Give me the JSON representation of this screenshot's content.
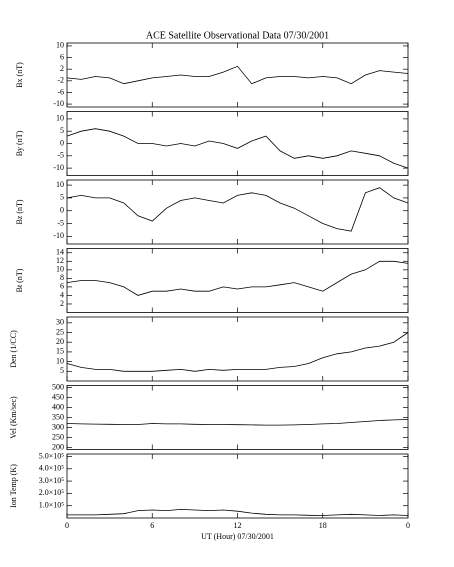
{
  "chart_data": [
    {
      "type": "line",
      "title": "ACE Satellite Observational Data   07/30/2001",
      "ylabel": "Bx (nT)",
      "x": [
        0,
        1,
        2,
        3,
        4,
        5,
        6,
        7,
        8,
        9,
        10,
        11,
        12,
        13,
        14,
        15,
        16,
        17,
        18,
        19,
        20,
        21,
        22,
        23,
        24
      ],
      "values": [
        -1,
        -1.5,
        -0.5,
        -1,
        -3,
        -2,
        -1,
        -0.5,
        0,
        -0.5,
        -0.5,
        1,
        3,
        -3,
        -1,
        -0.5,
        -0.5,
        -1,
        -0.5,
        -1,
        -3,
        0,
        1.5,
        1,
        0.5
      ],
      "color": "#000000",
      "xlim": [
        0,
        24
      ],
      "xticks": [
        0,
        6,
        12,
        18,
        {
          "value": 24,
          "label": "0"
        }
      ],
      "ylim": [
        -11,
        11
      ],
      "yticks": [
        -10,
        -6,
        -2,
        2,
        6,
        10
      ]
    },
    {
      "type": "line",
      "ylabel": "By (nT)",
      "x": [
        0,
        1,
        2,
        3,
        4,
        5,
        6,
        7,
        8,
        9,
        10,
        11,
        12,
        13,
        14,
        15,
        16,
        17,
        18,
        19,
        20,
        21,
        22,
        23,
        24
      ],
      "values": [
        3,
        5,
        6,
        5,
        3,
        0,
        0,
        -1,
        0,
        -1,
        1,
        0,
        -2,
        1,
        3,
        -3,
        -6,
        -5,
        -6,
        -5,
        -3,
        -4,
        -5,
        -8,
        -10
      ],
      "color": "#000000",
      "xlim": [
        0,
        24
      ],
      "xticks": [
        0,
        6,
        12,
        18,
        {
          "value": 24,
          "label": "0"
        }
      ],
      "ylim": [
        -13,
        13
      ],
      "yticks": [
        -10,
        -5,
        0,
        5,
        10
      ]
    },
    {
      "type": "line",
      "ylabel": "Bz (nT)",
      "x": [
        0,
        1,
        2,
        3,
        4,
        5,
        6,
        7,
        8,
        9,
        10,
        11,
        12,
        13,
        14,
        15,
        16,
        17,
        18,
        19,
        20,
        21,
        22,
        23,
        24
      ],
      "values": [
        5,
        6,
        5,
        5,
        3,
        -2,
        -4,
        1,
        4,
        5,
        4,
        3,
        6,
        7,
        6,
        3,
        1,
        -2,
        -5,
        -7,
        -8,
        7,
        9,
        5,
        3
      ],
      "color": "#000000",
      "xlim": [
        0,
        24
      ],
      "xticks": [
        0,
        6,
        12,
        18,
        {
          "value": 24,
          "label": "0"
        }
      ],
      "ylim": [
        -13,
        12
      ],
      "yticks": [
        -10,
        -5,
        0,
        5,
        10
      ]
    },
    {
      "type": "line",
      "ylabel": "Bt (nT)",
      "x": [
        0,
        1,
        2,
        3,
        4,
        5,
        6,
        7,
        8,
        9,
        10,
        11,
        12,
        13,
        14,
        15,
        16,
        17,
        18,
        19,
        20,
        21,
        22,
        23,
        24
      ],
      "values": [
        7,
        7.5,
        7.5,
        7,
        6,
        4,
        5,
        5,
        5.5,
        5,
        5,
        6,
        5.5,
        6,
        6,
        6.5,
        7,
        6,
        5,
        7,
        9,
        10,
        12,
        12,
        11.5
      ],
      "color": "#000000",
      "xlim": [
        0,
        24
      ],
      "xticks": [
        0,
        6,
        12,
        18,
        {
          "value": 24,
          "label": "0"
        }
      ],
      "ylim": [
        0,
        15
      ],
      "yticks": [
        2,
        4,
        6,
        8,
        10,
        12,
        14
      ]
    },
    {
      "type": "line",
      "ylabel": "Den (1/CC)",
      "x": [
        0,
        1,
        2,
        3,
        4,
        5,
        6,
        7,
        8,
        9,
        10,
        11,
        12,
        13,
        14,
        15,
        16,
        17,
        18,
        19,
        20,
        21,
        22,
        23,
        24
      ],
      "values": [
        9,
        7,
        6,
        6,
        5,
        5,
        5,
        5.5,
        6,
        5,
        6,
        5.5,
        6,
        6,
        6,
        7,
        7.5,
        9,
        12,
        14,
        15,
        17,
        18,
        20,
        25
      ],
      "color": "#000000",
      "xlim": [
        0,
        24
      ],
      "xticks": [
        0,
        6,
        12,
        18,
        {
          "value": 24,
          "label": "0"
        }
      ],
      "ylim": [
        0,
        33
      ],
      "yticks": [
        5,
        10,
        15,
        20,
        25,
        30
      ]
    },
    {
      "type": "line",
      "ylabel": "Vel (Km/sec)",
      "x": [
        0,
        1,
        2,
        3,
        4,
        5,
        6,
        7,
        8,
        9,
        10,
        11,
        12,
        13,
        14,
        15,
        16,
        17,
        18,
        19,
        20,
        21,
        22,
        23,
        24
      ],
      "values": [
        320,
        318,
        317,
        316,
        315,
        315,
        320,
        318,
        318,
        316,
        315,
        315,
        314,
        313,
        312,
        312,
        313,
        315,
        318,
        320,
        325,
        330,
        335,
        338,
        340
      ],
      "color": "#000000",
      "xlim": [
        0,
        24
      ],
      "xticks": [
        0,
        6,
        12,
        18,
        {
          "value": 24,
          "label": "0"
        }
      ],
      "ylim": [
        190,
        510
      ],
      "yticks": [
        200,
        250,
        300,
        350,
        400,
        450,
        500
      ]
    },
    {
      "type": "line",
      "ylabel": "Ion Temp (K)",
      "xlabel": "UT (Hour)   07/30/2001",
      "x": [
        0,
        1,
        2,
        3,
        4,
        5,
        6,
        7,
        8,
        9,
        10,
        11,
        12,
        13,
        14,
        15,
        16,
        17,
        18,
        19,
        20,
        21,
        22,
        23,
        24
      ],
      "values": [
        25000,
        25000,
        25000,
        30000,
        35000,
        60000,
        65000,
        60000,
        70000,
        65000,
        60000,
        65000,
        55000,
        40000,
        30000,
        25000,
        25000,
        22000,
        20000,
        25000,
        30000,
        25000,
        20000,
        25000,
        20000
      ],
      "color": "#000000",
      "xlim": [
        0,
        24
      ],
      "xticks": [
        0,
        6,
        12,
        18,
        {
          "value": 24,
          "label": "0"
        }
      ],
      "ylim": [
        0,
        520000
      ],
      "yticks": [
        {
          "value": 100000,
          "label": "1.0×10⁵"
        },
        {
          "value": 200000,
          "label": "2.0×10⁵"
        },
        {
          "value": 300000,
          "label": "3.0×10⁵"
        },
        {
          "value": 400000,
          "label": "4.0×10⁵"
        },
        {
          "value": 500000,
          "label": "5.0×10⁵"
        }
      ]
    }
  ]
}
